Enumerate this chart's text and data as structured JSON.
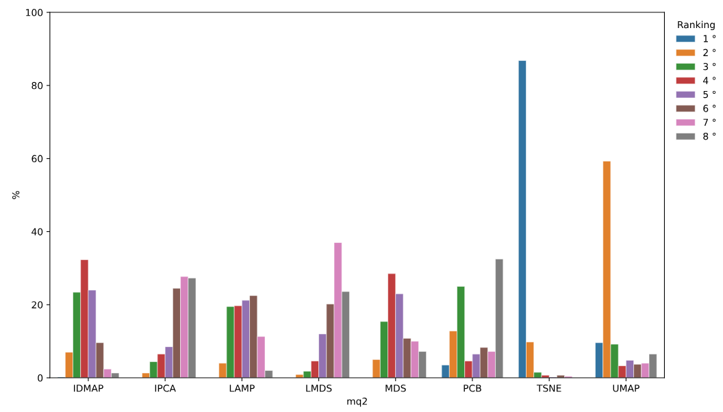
{
  "chart_data": {
    "type": "bar",
    "xlabel": "mq2",
    "ylabel": "%",
    "legend_title": "Ranking",
    "legend": "right",
    "grid": false,
    "categories": [
      "IDMAP",
      "IPCA",
      "LAMP",
      "LMDS",
      "MDS",
      "PCB",
      "TSNE",
      "UMAP"
    ],
    "ylim": [
      0,
      100
    ],
    "yticks": [
      0,
      20,
      40,
      60,
      80,
      100
    ],
    "series": [
      {
        "name": "1 °",
        "color": "#3274a1",
        "values": [
          0.2,
          null,
          null,
          null,
          null,
          3.5,
          86.8,
          9.6
        ]
      },
      {
        "name": "2 °",
        "color": "#e1812c",
        "values": [
          7,
          1.3,
          4,
          0.9,
          5,
          12.8,
          9.8,
          59.3
        ]
      },
      {
        "name": "3 °",
        "color": "#3a923a",
        "values": [
          23.4,
          4.4,
          19.5,
          1.8,
          15.4,
          25,
          1.5,
          9.2
        ]
      },
      {
        "name": "4 °",
        "color": "#c03d3e",
        "values": [
          32.3,
          6.5,
          19.7,
          4.6,
          28.5,
          4.6,
          0.7,
          3.3
        ]
      },
      {
        "name": "5 °",
        "color": "#9372b2",
        "values": [
          24,
          8.5,
          21.2,
          12,
          23,
          6.5,
          0.2,
          4.8
        ]
      },
      {
        "name": "6 °",
        "color": "#845b53",
        "values": [
          9.6,
          24.5,
          22.5,
          20.2,
          10.8,
          8.3,
          0.7,
          3.7
        ]
      },
      {
        "name": "7 °",
        "color": "#d684bd",
        "values": [
          2.4,
          27.7,
          11.3,
          37,
          10,
          7.2,
          0.4,
          4
        ]
      },
      {
        "name": "8 °",
        "color": "#7f7f7f",
        "values": [
          1.3,
          27.3,
          2,
          23.6,
          7.2,
          32.5,
          null,
          6.5
        ]
      }
    ]
  }
}
